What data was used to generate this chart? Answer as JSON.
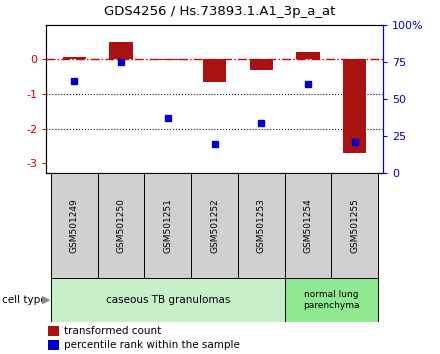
{
  "title": "GDS4256 / Hs.73893.1.A1_3p_a_at",
  "samples": [
    "GSM501249",
    "GSM501250",
    "GSM501251",
    "GSM501252",
    "GSM501253",
    "GSM501254",
    "GSM501255"
  ],
  "transformed_count": [
    0.07,
    0.5,
    -0.02,
    -0.65,
    -0.3,
    0.22,
    -2.7
  ],
  "percentile_rank": [
    62,
    75,
    37,
    20,
    34,
    60,
    21
  ],
  "ylim_left": [
    -3.3,
    1.0
  ],
  "ylim_right": [
    0,
    100
  ],
  "group1_indices": [
    0,
    1,
    2,
    3,
    4
  ],
  "group2_indices": [
    5,
    6
  ],
  "group1_label": "caseous TB granulomas",
  "group2_label": "normal lung\nparenchyma",
  "group1_color": "#c8f0c8",
  "group2_color": "#90e890",
  "sample_box_color": "#d0d0d0",
  "bar_color": "#aa1111",
  "dot_color": "#0000cc",
  "zero_line_color": "#cc0000",
  "dotted_line_color": "#111111",
  "right_axis_color": "#0000cc",
  "left_axis_color": "#cc0000",
  "bar_width": 0.5,
  "legend_bar_label": "transformed count",
  "legend_dot_label": "percentile rank within the sample",
  "cell_type_label": "cell type",
  "cell_type_arrow": "▶"
}
